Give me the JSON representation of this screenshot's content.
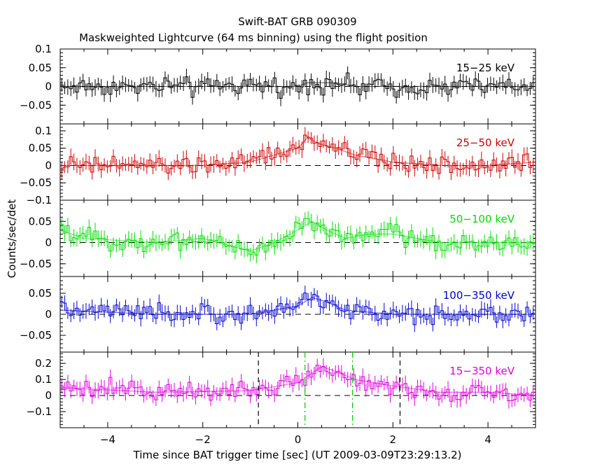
{
  "chart_data": {
    "type": "line",
    "title": "Swift-BAT GRB 090309",
    "subtitle": "Maskweighted Lightcurve (64 ms binning) using the flight position",
    "xlabel": "Time since BAT trigger time [sec] (UT 2009-03-09T23:29:13.2)",
    "ylabel": "Counts/sec/det",
    "xlim": [
      -5,
      5
    ],
    "x_ticks": [
      -4,
      -2,
      0,
      2,
      4
    ],
    "x_tick_labels": [
      "−4",
      "−2",
      "0",
      "2",
      "4"
    ],
    "bin_width_sec": 0.064,
    "vertical_markers": [
      {
        "x": -0.83,
        "style": "dashed",
        "color": "#000000",
        "panel": "15-350 keV"
      },
      {
        "x": 2.15,
        "style": "dashed",
        "color": "#000000",
        "panel": "15-350 keV"
      },
      {
        "x": 0.15,
        "style": "dash-dot",
        "color": "#00cc00",
        "panel": "15-350 keV"
      },
      {
        "x": 1.15,
        "style": "dash-dot",
        "color": "#00cc00",
        "panel": "15-350 keV"
      }
    ],
    "panels": [
      {
        "name": "15−25 keV",
        "color": "#000000",
        "ylim": [
          -0.1,
          0.1
        ],
        "y_ticks": [
          -0.05,
          0,
          0.05,
          0.1
        ],
        "y_tick_labels": [
          "−0.05",
          "0",
          "0.05",
          "0.1"
        ],
        "segments": [
          {
            "x": [
              -5.0,
              0.0,
              0.2,
              0.8,
              1.2,
              2.0,
              3.0,
              4.0,
              5.0
            ],
            "y": [
              0.0,
              0.0,
              0.01,
              0.01,
              0.0,
              0.0,
              0.0,
              0.0,
              0.0
            ]
          }
        ]
      },
      {
        "name": "25−50 keV",
        "color": "#cc0000",
        "ylim": [
          -0.1,
          0.12
        ],
        "y_ticks": [
          -0.1,
          -0.05,
          0,
          0.05,
          0.1
        ],
        "y_tick_labels": [
          "−0.1",
          "−0.05",
          "0",
          "0.05",
          "0.1"
        ],
        "segments": [
          {
            "x": [
              -5.0,
              -2.0,
              -1.0,
              0.0,
              0.2,
              0.5,
              0.8,
              1.2,
              2.0,
              3.0,
              4.0,
              5.0
            ],
            "y": [
              0.0,
              0.0,
              0.01,
              0.05,
              0.08,
              0.06,
              0.05,
              0.03,
              0.01,
              0.0,
              0.0,
              0.01
            ]
          }
        ]
      },
      {
        "name": "50−100 keV",
        "color": "#00dd00",
        "ylim": [
          -0.08,
          0.1
        ],
        "y_ticks": [
          -0.05,
          0,
          0.05
        ],
        "y_tick_labels": [
          "−0.05",
          "0",
          "0.05"
        ],
        "segments": [
          {
            "x": [
              -5.0,
              -4.5,
              -3.0,
              -2.0,
              -1.0,
              -0.5,
              0.0,
              0.3,
              0.6,
              1.0,
              1.5,
              2.0,
              3.0,
              4.0,
              5.0
            ],
            "y": [
              0.03,
              0.01,
              0.0,
              0.01,
              -0.02,
              0.0,
              0.03,
              0.05,
              0.03,
              0.01,
              0.02,
              0.02,
              0.0,
              0.0,
              0.0
            ]
          }
        ]
      },
      {
        "name": "100−350 keV",
        "color": "#0000cc",
        "ylim": [
          -0.09,
          0.09
        ],
        "y_ticks": [
          -0.05,
          0,
          0.05
        ],
        "y_tick_labels": [
          "−0.05",
          "0",
          "0.05"
        ],
        "segments": [
          {
            "x": [
              -5.0,
              -3.0,
              -1.0,
              0.0,
              0.3,
              0.6,
              1.0,
              2.0,
              3.0,
              4.0,
              5.0
            ],
            "y": [
              0.01,
              0.0,
              0.0,
              0.02,
              0.04,
              0.03,
              0.01,
              0.0,
              0.0,
              0.0,
              0.0
            ]
          }
        ]
      },
      {
        "name": "15−350 keV",
        "color": "#dd00dd",
        "ylim": [
          -0.2,
          0.27
        ],
        "y_ticks": [
          -0.1,
          0,
          0.1,
          0.2
        ],
        "y_tick_labels": [
          "−0.1",
          "0",
          "0.1",
          "0.2"
        ],
        "segments": [
          {
            "x": [
              -5.0,
              -3.0,
              -1.0,
              0.0,
              0.2,
              0.5,
              0.8,
              1.2,
              1.6,
              2.0,
              3.0,
              4.0,
              5.0
            ],
            "y": [
              0.05,
              0.02,
              0.03,
              0.08,
              0.12,
              0.18,
              0.15,
              0.1,
              0.08,
              0.06,
              0.02,
              0.02,
              0.0
            ]
          }
        ]
      }
    ]
  }
}
